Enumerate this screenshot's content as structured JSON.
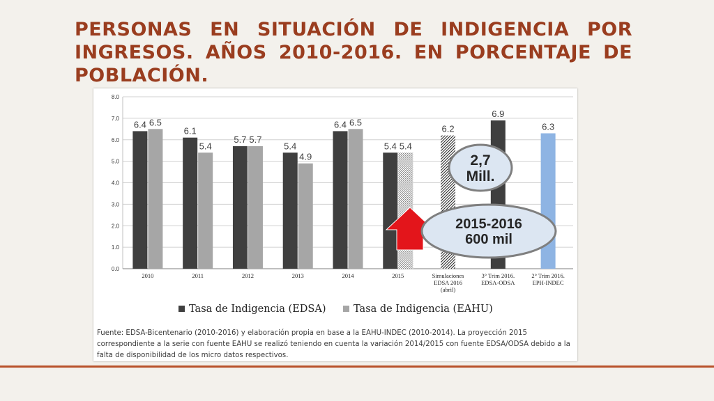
{
  "slide": {
    "title": "Personas en situación de indigencia por ingresos. Años 2010-2016. En porcentaje de población."
  },
  "colors": {
    "title": "#9a3d1f",
    "edsa": "#3f3f3f",
    "eahu": "#a6a6a6",
    "eph_indec": "#8eb4e3",
    "arrow": "#e3151b",
    "callout_fill": "#dce6f2",
    "callout_stroke": "#7f7f7f",
    "rule": "#b8512a"
  },
  "chart_data": {
    "type": "bar",
    "title": "",
    "xlabel": "",
    "ylabel": "",
    "ylim": [
      0,
      8
    ],
    "yticks": [
      "0.0",
      "1.0",
      "2.0",
      "3.0",
      "4.0",
      "5.0",
      "6.0",
      "7.0",
      "8.0"
    ],
    "grid": true,
    "legend_position": "bottom",
    "categories": [
      {
        "label": "2010"
      },
      {
        "label": "2011"
      },
      {
        "label": "2012"
      },
      {
        "label": "2013"
      },
      {
        "label": "2014"
      },
      {
        "label": "2015"
      },
      {
        "label": [
          "Simulaciones",
          "EDSA 2016",
          "(abril)"
        ]
      },
      {
        "label": [
          "3° Trim 2016.",
          "EDSA-ODSA"
        ]
      },
      {
        "label": [
          "2° Trim 2016.",
          "EPH-INDEC"
        ]
      }
    ],
    "bars": [
      {
        "category": 0,
        "series": "edsa",
        "value": 6.4,
        "label": "6.4"
      },
      {
        "category": 0,
        "series": "eahu",
        "value": 6.5,
        "label": "6.5"
      },
      {
        "category": 1,
        "series": "edsa",
        "value": 6.1,
        "label": "6.1"
      },
      {
        "category": 1,
        "series": "eahu",
        "value": 5.4,
        "label": "5.4"
      },
      {
        "category": 2,
        "series": "edsa",
        "value": 5.7,
        "label": "5.7"
      },
      {
        "category": 2,
        "series": "eahu",
        "value": 5.7,
        "label": "5.7"
      },
      {
        "category": 3,
        "series": "edsa",
        "value": 5.4,
        "label": "5.4"
      },
      {
        "category": 3,
        "series": "eahu",
        "value": 4.9,
        "label": "4.9"
      },
      {
        "category": 4,
        "series": "edsa",
        "value": 6.4,
        "label": "6.4"
      },
      {
        "category": 4,
        "series": "eahu",
        "value": 6.5,
        "label": "6.5"
      },
      {
        "category": 5,
        "series": "edsa",
        "value": 5.4,
        "label": "5.4"
      },
      {
        "category": 5,
        "series": "eahu",
        "value": 5.4,
        "label": "5.4",
        "pattern": "dotted"
      },
      {
        "category": 6,
        "series": "edsa",
        "value": 6.2,
        "label": "6.2",
        "pattern": "hatched",
        "slot": "center"
      },
      {
        "category": 7,
        "series": "edsa",
        "value": 6.9,
        "label": "6.9",
        "slot": "center"
      },
      {
        "category": 8,
        "series": "eph",
        "value": 6.3,
        "label": "6.3",
        "slot": "center"
      }
    ],
    "series": [
      {
        "key": "edsa",
        "name": "Tasa de Indigencia (EDSA)"
      },
      {
        "key": "eahu",
        "name": "Tasa de Indigencia (EAHU)"
      }
    ],
    "annotations": [
      {
        "kind": "callout",
        "lines": [
          "2,7",
          "Mill."
        ]
      },
      {
        "kind": "callout",
        "lines": [
          "2015-2016",
          "600 mil"
        ]
      },
      {
        "kind": "arrow",
        "direction": "up"
      }
    ]
  },
  "source_note": "Fuente: EDSA-Bicentenario (2010-2016) y elaboración propia en base a la EAHU-INDEC (2010-2014). La proyección 2015 correspondiente a la serie con fuente EAHU se realizó teniendo en cuenta la variación 2014/2015 con fuente EDSA/ODSA debido a la falta de disponibilidad de los micro datos respectivos."
}
